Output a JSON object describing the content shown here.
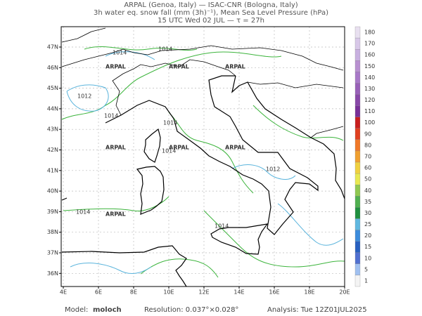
{
  "header": {
    "line1": "ARPAL (Genoa, Italy)  —  ISAC-CNR (Bologna, Italy)",
    "line2": "3h water eq. snow fall (mm (3h)⁻¹), Mean Sea Level Pressure (hPa)",
    "line3": "15 UTC Wed 02 JUL  —  τ = 27h"
  },
  "map": {
    "lon_ticks": [
      {
        "value": 4,
        "label": "4E"
      },
      {
        "value": 6,
        "label": "6E"
      },
      {
        "value": 8,
        "label": "8E"
      },
      {
        "value": 10,
        "label": "10E"
      },
      {
        "value": 12,
        "label": "12E"
      },
      {
        "value": 14,
        "label": "14E"
      },
      {
        "value": 16,
        "label": "16E"
      },
      {
        "value": 18,
        "label": "18E"
      },
      {
        "value": 20,
        "label": "20E"
      }
    ],
    "lat_ticks": [
      {
        "value": 47,
        "label": "47N"
      },
      {
        "value": 46,
        "label": "46N"
      },
      {
        "value": 45,
        "label": "45N"
      },
      {
        "value": 44,
        "label": "44N"
      },
      {
        "value": 43,
        "label": "43N"
      },
      {
        "value": 42,
        "label": "42N"
      },
      {
        "value": 41,
        "label": "41N"
      },
      {
        "value": 40,
        "label": "40N"
      },
      {
        "value": 39,
        "label": "39N"
      },
      {
        "value": 38,
        "label": "38N"
      },
      {
        "value": 37,
        "label": "37N"
      },
      {
        "value": 36,
        "label": "36N"
      }
    ],
    "contour_labels": [
      "1014",
      "1014",
      "1012",
      "1014",
      "1014",
      "1012",
      "1014",
      "1014",
      "1014"
    ],
    "watermark": "ARPAL"
  },
  "colorbar": {
    "levels": [
      180,
      170,
      160,
      150,
      140,
      130,
      120,
      110,
      100,
      90,
      80,
      70,
      60,
      50,
      40,
      35,
      30,
      25,
      20,
      15,
      10,
      5,
      1
    ],
    "colors": [
      "#e8e0f0",
      "#d8c8e8",
      "#c8b0e0",
      "#b890d0",
      "#a878c8",
      "#9860b8",
      "#8848a8",
      "#783098",
      "#c81e1e",
      "#e04020",
      "#f07828",
      "#f0a030",
      "#f0d040",
      "#e8e850",
      "#90c850",
      "#50b050",
      "#209040",
      "#60b8e0",
      "#3c8cdc",
      "#2860c0",
      "#5070d0",
      "#a0c0f0",
      "#f4f4f4"
    ]
  },
  "footer": {
    "model_label": "Model:",
    "model": "moloch",
    "resolution": "Resolution: 0.037°×0.028°",
    "analysis": "Analysis: Tue 12Z01JUL2025"
  }
}
